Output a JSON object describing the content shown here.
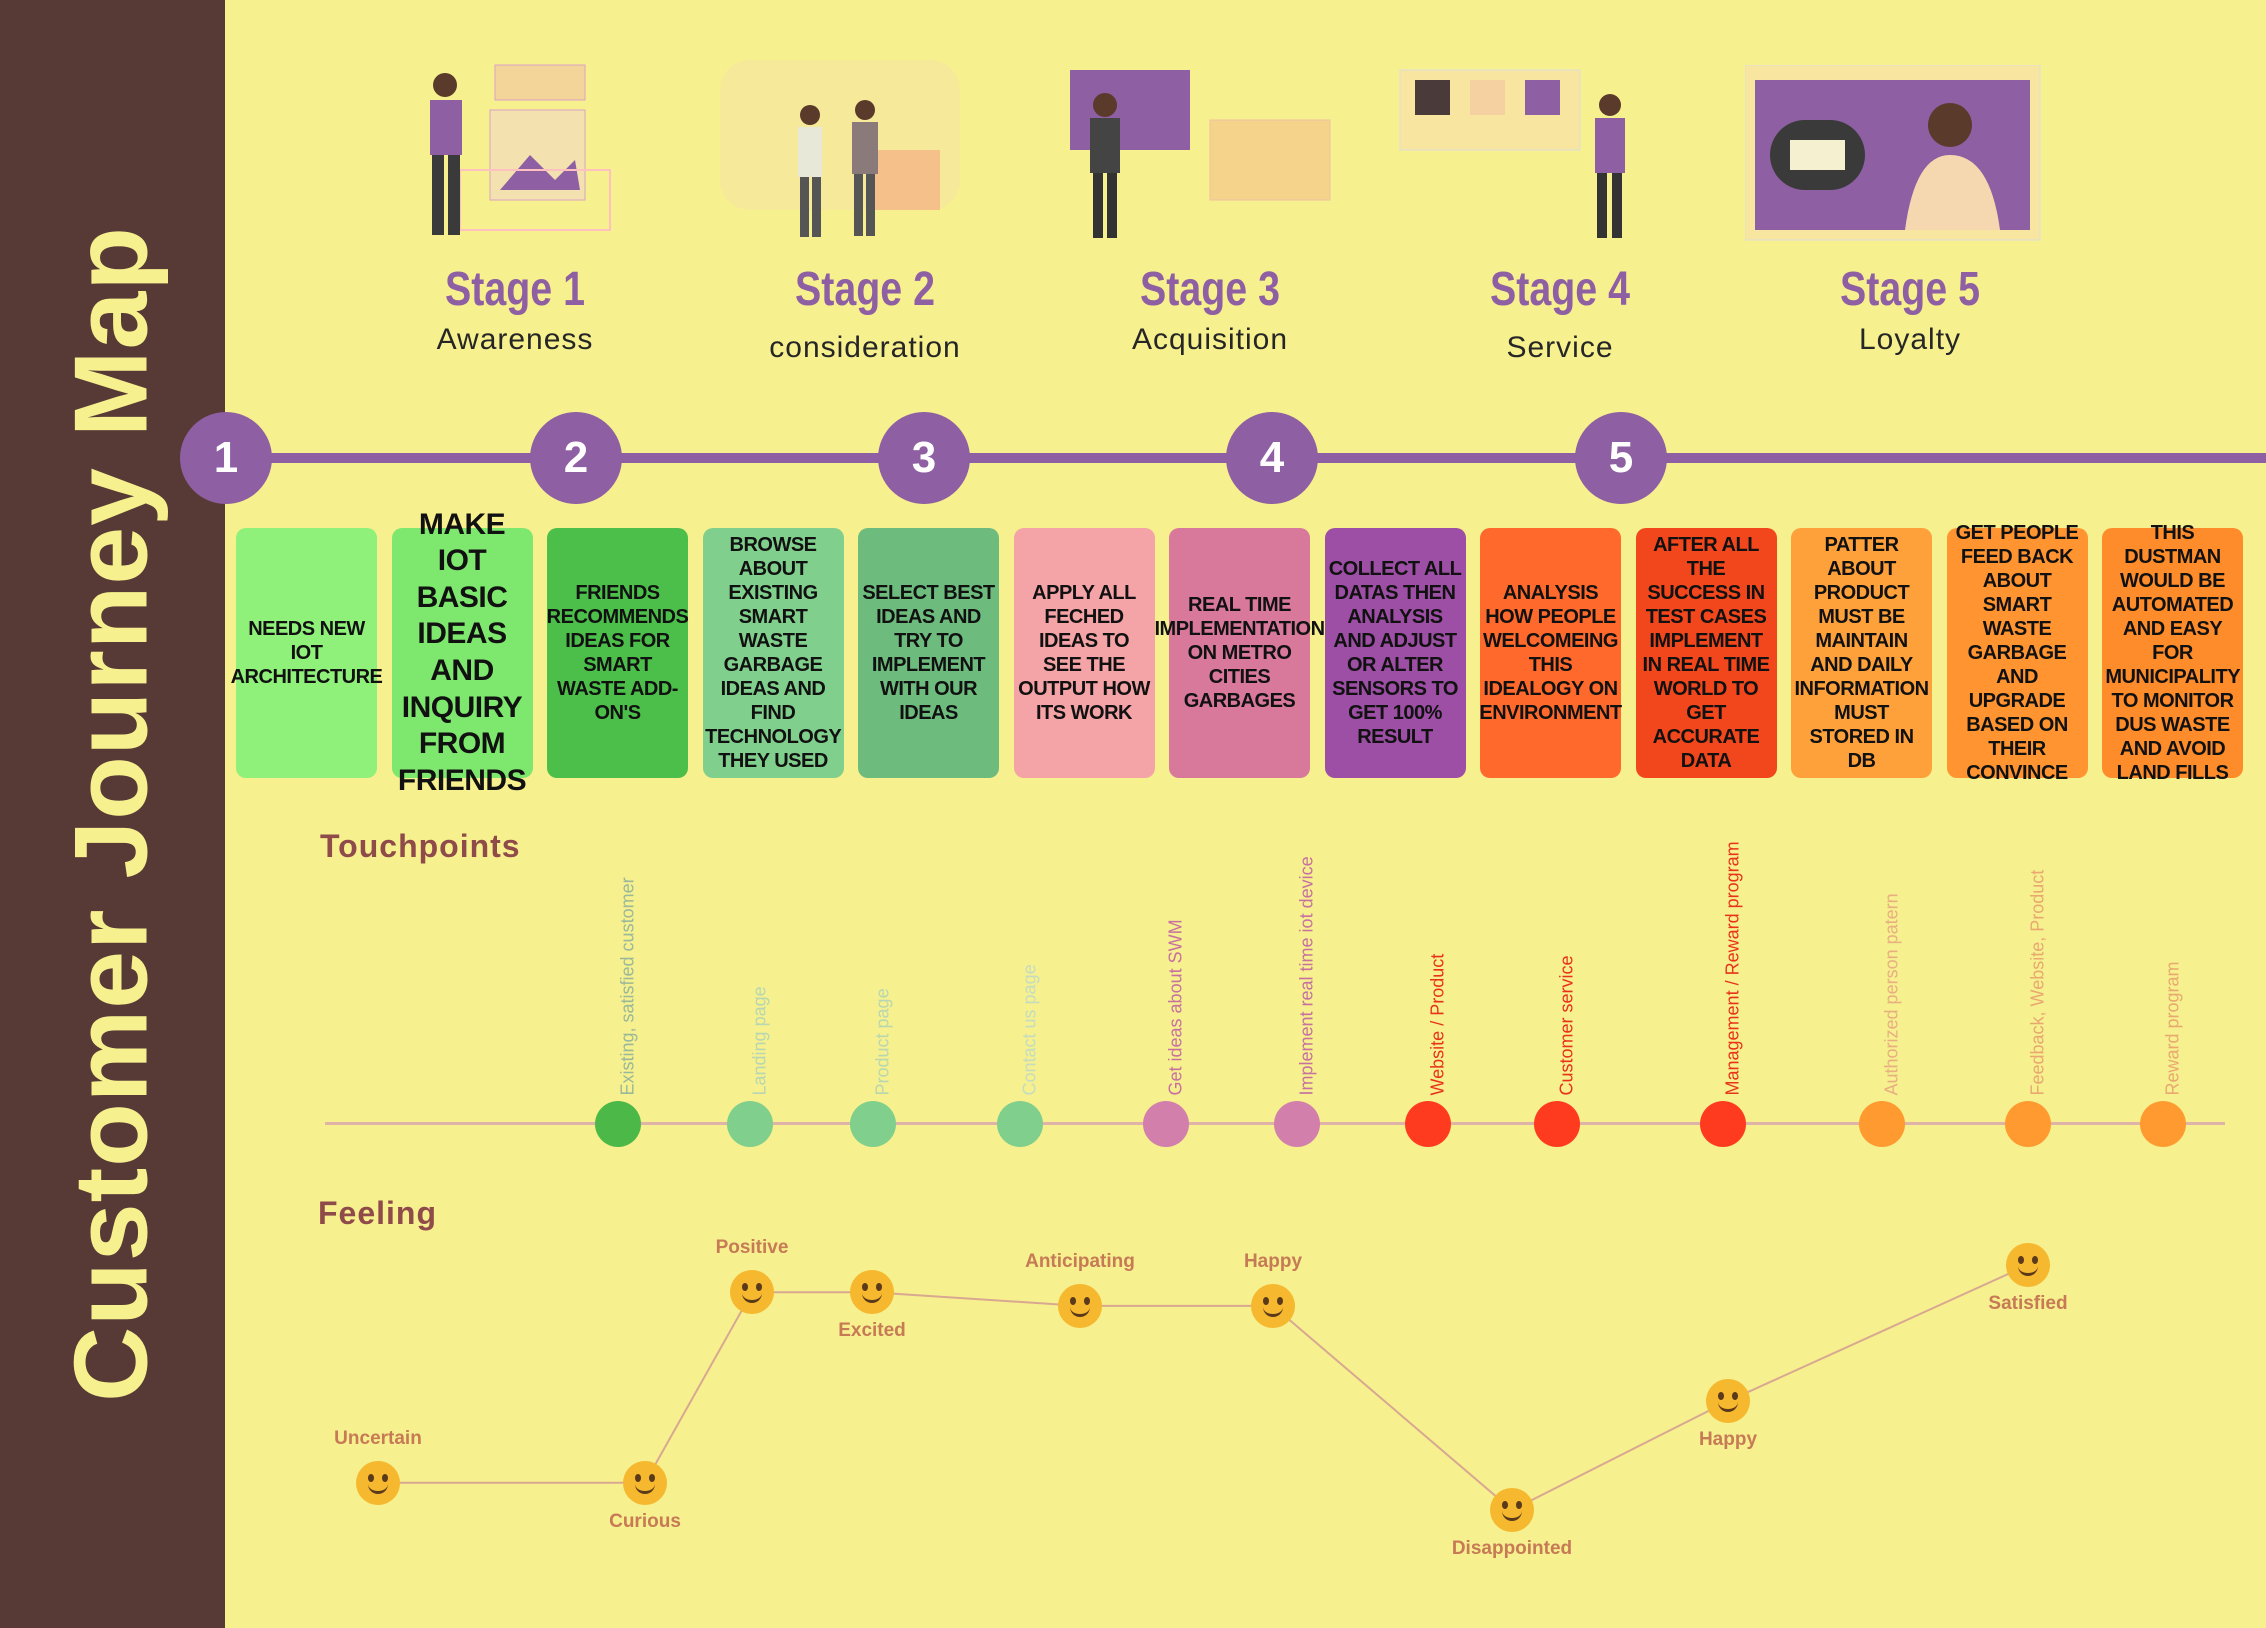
{
  "title": "Customer Journey Map",
  "stages": [
    {
      "num": "Stage 1",
      "name": "Awareness"
    },
    {
      "num": "Stage 2",
      "name": "consideration"
    },
    {
      "num": "Stage 3",
      "name": "Acquisition"
    },
    {
      "num": "Stage 4",
      "name": "Service"
    },
    {
      "num": "Stage 5",
      "name": "Loyalty"
    }
  ],
  "timeline_nodes": [
    "1",
    "2",
    "3",
    "4",
    "5"
  ],
  "cards": [
    {
      "text": "NEEDS NEW IOT ARCHITECTURE",
      "color": "#8ff07a"
    },
    {
      "text": "MAKE IOT BASIC IDEAS AND INQUIRY FROM FRIENDS",
      "color": "#7ee86e"
    },
    {
      "text": "FRIENDS RECOMMENDS IDEAS FOR SMART WASTE ADD-ON'S",
      "color": "#4cbf4a"
    },
    {
      "text": "BROWSE ABOUT EXISTING SMART WASTE GARBAGE IDEAS AND FIND TECHNOLOGY THEY USED",
      "color": "#80cf8c"
    },
    {
      "text": "SELECT BEST IDEAS AND TRY TO IMPLEMENT WITH OUR IDEAS",
      "color": "#6dbb7d"
    },
    {
      "text": "APPLY ALL FECHED IDEAS TO SEE THE OUTPUT HOW ITS WORK",
      "color": "#f4a3a6"
    },
    {
      "text": "REAL TIME IMPLEMENTATION ON METRO CITIES GARBAGES",
      "color": "#d8789a"
    },
    {
      "text": "COLLECT ALL DATAS THEN ANALYSIS AND ADJUST OR ALTER SENSORS TO GET 100% RESULT",
      "color": "#9d4ea5"
    },
    {
      "text": "ANALYSIS HOW PEOPLE WELCOMEING THIS IDEALOGY ON ENVIRONMENT",
      "color": "#ff6a2c"
    },
    {
      "text": "AFTER ALL THE SUCCESS IN TEST CASES IMPLEMENT IN REAL TIME WORLD TO GET ACCURATE DATA",
      "color": "#f2471c"
    },
    {
      "text": "PATTER ABOUT PRODUCT MUST BE MAINTAIN AND DAILY INFORMATION MUST STORED IN DB",
      "color": "#ffa13a"
    },
    {
      "text": "GET PEOPLE FEED BACK ABOUT SMART WASTE GARBAGE AND UPGRADE BASED ON THEIR CONVINCE",
      "color": "#ff9430"
    },
    {
      "text": "THIS DUSTMAN WOULD BE AUTOMATED AND EASY FOR MUNICIPALITY TO MONITOR DUS WASTE AND AVOID LAND FILLS",
      "color": "#ff8c2a"
    }
  ],
  "touchpoints_label": "Touchpoints",
  "touchpoints": [
    {
      "label": "Existing, satisfied customer",
      "color": "#4cb848",
      "text_color": "#9ab89a"
    },
    {
      "label": "Landing page",
      "color": "#80cf8c",
      "text_color": "#b8d6b2"
    },
    {
      "label": "Product page",
      "color": "#80cf8c",
      "text_color": "#b8d6b2"
    },
    {
      "label": "Contact us page",
      "color": "#80cf8c",
      "text_color": "#c4dcc0"
    },
    {
      "label": "Get ideas about SWM",
      "color": "#d27fac",
      "text_color": "#c771a0"
    },
    {
      "label": "Implement real time iot device",
      "color": "#d27fac",
      "text_color": "#c771a0"
    },
    {
      "label": "Website / Product",
      "color": "#ff3b1f",
      "text_color": "#e8321a"
    },
    {
      "label": "Customer service",
      "color": "#ff3b1f",
      "text_color": "#e8321a"
    },
    {
      "label": "Management / Reward program",
      "color": "#ff3b1f",
      "text_color": "#e8321a"
    },
    {
      "label": "Authorized person patern",
      "color": "#ff9a30",
      "text_color": "#e8b080"
    },
    {
      "label": "Feedback, Website, Product",
      "color": "#ff9a30",
      "text_color": "#e8a870"
    },
    {
      "label": "Reward program",
      "color": "#ff9a30",
      "text_color": "#e8a870"
    }
  ],
  "feeling_label": "Feeling",
  "feelings": [
    {
      "label": "Uncertain",
      "level": 2,
      "label_pos": "above"
    },
    {
      "label": "Curious",
      "level": 2,
      "label_pos": "below"
    },
    {
      "label": "Positive",
      "level": 9,
      "label_pos": "above"
    },
    {
      "label": "Excited",
      "level": 9,
      "label_pos": "below"
    },
    {
      "label": "Anticipating",
      "level": 8.5,
      "label_pos": "above"
    },
    {
      "label": "Happy",
      "level": 8.5,
      "label_pos": "above"
    },
    {
      "label": "Disappointed",
      "level": 1,
      "label_pos": "below"
    },
    {
      "label": "Happy",
      "level": 5,
      "label_pos": "below"
    },
    {
      "label": "Satisfied",
      "level": 10,
      "label_pos": "below"
    }
  ],
  "colors": {
    "background": "#f6f08e",
    "sidebar": "#573a35",
    "accent": "#8e5fa2"
  }
}
